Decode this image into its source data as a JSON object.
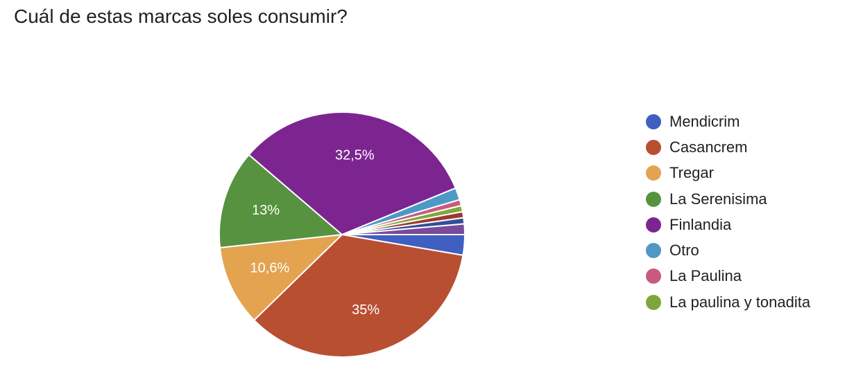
{
  "question": {
    "title": "Cuál de estas marcas soles consumir?"
  },
  "chart_data": {
    "type": "pie",
    "title": "Cuál de estas marcas soles consumir?",
    "legend_position": "right",
    "slices": [
      {
        "name": "Mendicrim",
        "value": 2.7,
        "color": "#3f5fc1",
        "label": ""
      },
      {
        "name": "Casancrem",
        "value": 35,
        "color": "#b94f31",
        "label": "35%"
      },
      {
        "name": "Tregar",
        "value": 10.6,
        "color": "#e3a34f",
        "label": "10,6%"
      },
      {
        "name": "La Serenisima",
        "value": 13,
        "color": "#56923f",
        "label": "13%"
      },
      {
        "name": "Finlandia",
        "value": 32.5,
        "color": "#7c2590",
        "label": "32,5%"
      },
      {
        "name": "Otro",
        "value": 1.6,
        "color": "#4e98c6",
        "label": ""
      },
      {
        "name": "La Paulina",
        "value": 0.8,
        "color": "#c85b7c",
        "label": ""
      },
      {
        "name": "La paulina y tonadita",
        "value": 0.8,
        "color": "#7fa63d",
        "label": ""
      },
      {
        "name": "",
        "value": 0.8,
        "color": "#9a3a2d",
        "label": ""
      },
      {
        "name": "",
        "value": 0.8,
        "color": "#344e99",
        "label": ""
      },
      {
        "name": "",
        "value": 1.4,
        "color": "#7a4a9c",
        "label": ""
      }
    ]
  }
}
